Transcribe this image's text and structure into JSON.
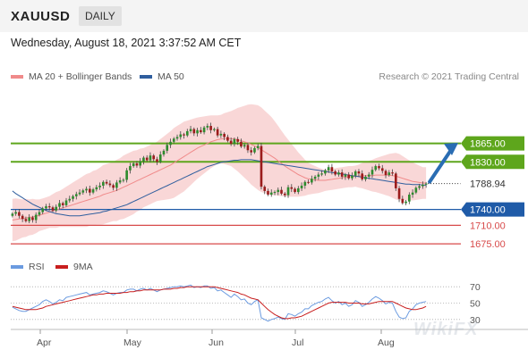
{
  "header": {
    "symbol": "XAUUSD",
    "timeframe": "DAILY",
    "datetime": "Wednesday, August 18, 2021 3:37:52 AM CET"
  },
  "legend": {
    "ma20": "MA 20 + Bollinger Bands",
    "ma50": "MA 50",
    "credit": "Research © 2021 Trading Central"
  },
  "rsi_legend": {
    "rsi": "RSI",
    "ma9": "9MA"
  },
  "colors": {
    "green_level": "#5ea61c",
    "blue_level": "#1f5ba8",
    "red_level": "#d84a4a",
    "current_price": "#333333",
    "bollinger": "#f7c9c9",
    "ma20": "#f08a8a",
    "ma50": "#2f5e9e",
    "rsi": "#6b9be0",
    "rsi_ma": "#c81e1e",
    "arrow": "#2a6db3"
  },
  "watermark": "WikiFX",
  "chart_data": [
    {
      "type": "candlestick",
      "title": "",
      "ylim": [
        1660,
        1920
      ],
      "x_months": [
        "Apr",
        "May",
        "Jun",
        "Jul",
        "Aug"
      ],
      "current_price": 1788.94,
      "levels": [
        {
          "value": 1865.0,
          "label": "1865.00",
          "kind": "resistance",
          "color": "#5ea61c"
        },
        {
          "value": 1830.0,
          "label": "1830.00",
          "kind": "resistance",
          "color": "#5ea61c"
        },
        {
          "value": 1740.0,
          "label": "1740.00",
          "kind": "pivot",
          "color": "#1f5ba8"
        },
        {
          "value": 1710.0,
          "label": "1710.00",
          "kind": "support",
          "color": "#d84a4a"
        },
        {
          "value": 1675.0,
          "label": "1675.00",
          "kind": "support",
          "color": "#d84a4a"
        }
      ],
      "closes": [
        1732,
        1735,
        1728,
        1722,
        1718,
        1725,
        1720,
        1730,
        1735,
        1742,
        1746,
        1744,
        1738,
        1745,
        1752,
        1748,
        1757,
        1760,
        1765,
        1769,
        1772,
        1776,
        1779,
        1772,
        1778,
        1782,
        1785,
        1792,
        1789,
        1786,
        1781,
        1791,
        1795,
        1796,
        1814,
        1822,
        1827,
        1823,
        1831,
        1838,
        1833,
        1842,
        1835,
        1830,
        1844,
        1851,
        1862,
        1868,
        1874,
        1877,
        1882,
        1880,
        1888,
        1892,
        1884,
        1890,
        1886,
        1895,
        1898,
        1890,
        1892,
        1880,
        1883,
        1877,
        1870,
        1864,
        1873,
        1868,
        1859,
        1862,
        1852,
        1848,
        1856,
        1860,
        1783,
        1775,
        1768,
        1772,
        1773,
        1777,
        1770,
        1767,
        1782,
        1779,
        1773,
        1780,
        1785,
        1792,
        1791,
        1798,
        1802,
        1806,
        1808,
        1814,
        1820,
        1812,
        1806,
        1810,
        1802,
        1806,
        1799,
        1804,
        1812,
        1808,
        1797,
        1802,
        1806,
        1815,
        1822,
        1818,
        1813,
        1805,
        1810,
        1808,
        1780,
        1760,
        1752,
        1755,
        1768,
        1772,
        1781,
        1784,
        1787,
        1788.94
      ],
      "ma20": [
        1720,
        1721,
        1722,
        1723,
        1724,
        1725,
        1726,
        1727,
        1729,
        1731,
        1733,
        1735,
        1737,
        1739,
        1741,
        1743,
        1745,
        1747,
        1749,
        1751,
        1753,
        1755,
        1757,
        1759,
        1761,
        1763,
        1765,
        1768,
        1770,
        1772,
        1774,
        1776,
        1779,
        1782,
        1785,
        1788,
        1791,
        1794,
        1797,
        1800,
        1803,
        1806,
        1809,
        1812,
        1815,
        1818,
        1821,
        1824,
        1828,
        1832,
        1836,
        1840,
        1844,
        1848,
        1852,
        1856,
        1859,
        1862,
        1865,
        1868,
        1870,
        1872,
        1873,
        1874,
        1874,
        1874,
        1873,
        1872,
        1870,
        1868,
        1866,
        1863,
        1860,
        1857,
        1853,
        1849,
        1845,
        1841,
        1837,
        1832,
        1827,
        1822,
        1818,
        1814,
        1810,
        1806,
        1803,
        1800,
        1798,
        1797,
        1796,
        1795,
        1795,
        1795,
        1796,
        1797,
        1798,
        1799,
        1800,
        1801,
        1802,
        1802,
        1803,
        1803,
        1804,
        1804,
        1804,
        1804,
        1805,
        1805,
        1805,
        1805,
        1805,
        1804,
        1803,
        1801,
        1799,
        1797,
        1795,
        1793,
        1792,
        1791,
        1790,
        1790
      ],
      "ma50": [
        1775,
        1770,
        1766,
        1762,
        1758,
        1754,
        1750,
        1747,
        1744,
        1741,
        1738,
        1736,
        1734,
        1732,
        1731,
        1730,
        1729,
        1728,
        1728,
        1728,
        1728,
        1729,
        1730,
        1731,
        1732,
        1733,
        1734,
        1736,
        1737,
        1739,
        1741,
        1743,
        1745,
        1747,
        1749,
        1752,
        1755,
        1758,
        1761,
        1764,
        1767,
        1770,
        1773,
        1776,
        1779,
        1782,
        1785,
        1788,
        1791,
        1794,
        1797,
        1800,
        1803,
        1806,
        1809,
        1812,
        1815,
        1818,
        1821,
        1823,
        1825,
        1827,
        1829,
        1830,
        1831,
        1832,
        1833,
        1833,
        1834,
        1834,
        1834,
        1834,
        1833,
        1832,
        1831,
        1830,
        1829,
        1828,
        1827,
        1826,
        1825,
        1824,
        1823,
        1822,
        1821,
        1820,
        1819,
        1818,
        1817,
        1816,
        1815,
        1814,
        1813,
        1812,
        1811,
        1810,
        1809,
        1808,
        1807,
        1806,
        1805,
        1804,
        1803,
        1802,
        1801,
        1800,
        1799,
        1798,
        1797,
        1796,
        1795,
        1794,
        1793,
        1792,
        1791,
        1790,
        1789,
        1788,
        1788,
        1787,
        1787,
        1787,
        1786,
        1786
      ],
      "band_width": [
        40,
        40,
        38,
        36,
        36,
        34,
        34,
        32,
        30,
        30,
        30,
        30,
        32,
        34,
        34,
        36,
        38,
        40,
        42,
        44,
        46,
        48,
        50,
        50,
        52,
        52,
        54,
        56,
        56,
        56,
        56,
        58,
        58,
        60,
        60,
        60,
        60,
        58,
        58,
        56,
        56,
        56,
        56,
        56,
        58,
        60,
        62,
        64,
        66,
        66,
        66,
        66,
        64,
        62,
        60,
        58,
        56,
        54,
        52,
        50,
        48,
        46,
        46,
        48,
        50,
        52,
        56,
        60,
        64,
        68,
        72,
        76,
        78,
        80,
        80,
        78,
        76,
        74,
        70,
        66,
        62,
        58,
        54,
        50,
        46,
        42,
        38,
        34,
        30,
        28,
        26,
        24,
        22,
        20,
        20,
        20,
        20,
        20,
        20,
        20,
        20,
        20,
        20,
        22,
        24,
        26,
        28,
        30,
        32,
        34,
        36,
        38,
        40,
        42,
        44,
        44,
        42,
        40,
        38,
        36,
        34,
        32,
        30,
        30
      ]
    },
    {
      "type": "line",
      "title": "",
      "ylim": [
        20,
        80
      ],
      "yticks": [
        70,
        50,
        30
      ],
      "series": [
        {
          "name": "RSI",
          "color": "#6b9be0",
          "values": [
            45,
            43,
            41,
            40,
            40,
            42,
            44,
            46,
            48,
            52,
            54,
            52,
            49,
            51,
            54,
            53,
            57,
            58,
            59,
            60,
            61,
            62,
            63,
            60,
            61,
            62,
            63,
            65,
            64,
            62,
            60,
            62,
            63,
            63,
            66,
            67,
            67,
            65,
            67,
            68,
            66,
            68,
            66,
            64,
            66,
            67,
            68,
            69,
            70,
            70,
            71,
            70,
            71,
            72,
            69,
            70,
            69,
            71,
            71,
            68,
            69,
            65,
            66,
            63,
            60,
            57,
            61,
            58,
            54,
            55,
            50,
            48,
            52,
            54,
            32,
            30,
            28,
            30,
            31,
            33,
            31,
            30,
            37,
            36,
            34,
            37,
            39,
            43,
            43,
            47,
            49,
            51,
            52,
            55,
            57,
            53,
            50,
            52,
            48,
            50,
            46,
            48,
            53,
            51,
            46,
            48,
            51,
            55,
            58,
            56,
            53,
            49,
            51,
            50,
            40,
            33,
            31,
            32,
            40,
            43,
            48,
            50,
            51,
            52
          ]
        },
        {
          "name": "9MA",
          "color": "#c81e1e",
          "values": [
            46,
            45,
            44,
            43,
            42,
            42,
            42,
            42,
            43,
            44,
            46,
            47,
            48,
            49,
            50,
            51,
            52,
            53,
            54,
            55,
            56,
            57,
            58,
            59,
            60,
            60,
            61,
            61,
            62,
            62,
            62,
            62,
            62,
            63,
            63,
            64,
            64,
            65,
            65,
            66,
            66,
            66,
            66,
            66,
            66,
            67,
            67,
            67,
            68,
            68,
            69,
            69,
            70,
            70,
            70,
            70,
            70,
            70,
            70,
            70,
            70,
            69,
            68,
            67,
            66,
            65,
            64,
            63,
            61,
            60,
            58,
            56,
            55,
            54,
            50,
            46,
            42,
            39,
            36,
            34,
            32,
            31,
            31,
            32,
            32,
            33,
            34,
            36,
            38,
            40,
            42,
            44,
            46,
            48,
            50,
            51,
            51,
            51,
            51,
            51,
            50,
            50,
            50,
            50,
            49,
            49,
            49,
            50,
            51,
            52,
            52,
            52,
            52,
            52,
            50,
            48,
            46,
            44,
            43,
            42,
            42,
            43,
            44,
            46
          ]
        }
      ]
    }
  ]
}
